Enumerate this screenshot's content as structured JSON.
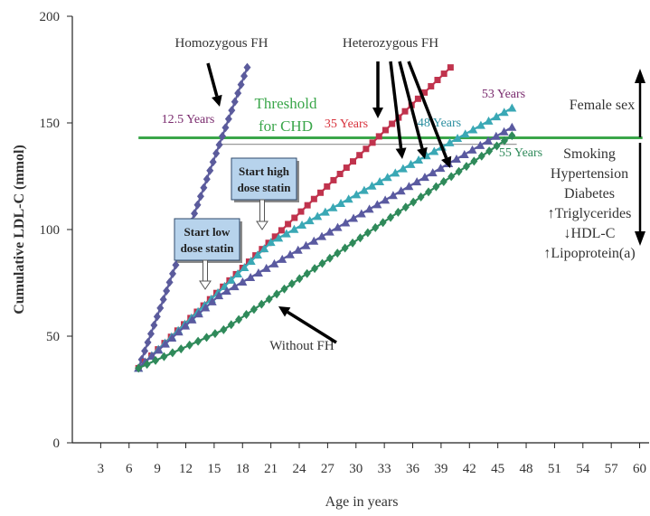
{
  "chart_data": {
    "type": "line",
    "title": "",
    "xlabel": "Age in years",
    "ylabel": "Cumulative LDL-C (mmol)",
    "x_ticks": [
      "3",
      "6",
      "9",
      "12",
      "15",
      "18",
      "21",
      "24",
      "27",
      "30",
      "33",
      "36",
      "39",
      "42",
      "45",
      "48",
      "51",
      "54",
      "57",
      "60"
    ],
    "y_ticks": [
      "0",
      "50",
      "100",
      "150",
      "200"
    ],
    "xlim": [
      0,
      61
    ],
    "ylim": [
      0,
      200
    ],
    "grid": false,
    "series": [
      {
        "name": "Homozygous FH",
        "color": "#5b5b9c",
        "marker": "diamond",
        "x": [
          7,
          18.5
        ],
        "y": [
          35,
          176
        ]
      },
      {
        "name": "Heterozygous FH",
        "color": "#c0334d",
        "marker": "square",
        "x": [
          7,
          40
        ],
        "y": [
          35,
          176
        ]
      },
      {
        "name": "",
        "color": "#3aa8b5",
        "marker": "triangle-up",
        "x": [
          7,
          21,
          46.5
        ],
        "y": [
          35,
          94,
          157
        ]
      },
      {
        "name": "",
        "color": "#5a5aa0",
        "marker": "triangle-up",
        "x": [
          7,
          15.5,
          46.5
        ],
        "y": [
          35,
          69,
          148
        ]
      },
      {
        "name": "Without FH",
        "color": "#2f8a5a",
        "marker": "diamond",
        "x": [
          7,
          16,
          46.5
        ],
        "y": [
          35,
          53,
          144
        ]
      }
    ],
    "threshold": {
      "value": 143,
      "color": "#3aa64a",
      "label_lines": [
        "Threshold",
        "for CHD"
      ]
    },
    "annotations": [
      {
        "text": "Homozygous FH"
      },
      {
        "text": "Heterozygous FH"
      },
      {
        "text": "12.5 Years",
        "color": "#7a2b6e"
      },
      {
        "text": "35 Years",
        "color": "#d8323c"
      },
      {
        "text": "48 Years",
        "color": "#2b8fa0"
      },
      {
        "text": "53 Years",
        "color": "#7a2b6e"
      },
      {
        "text": "55 Years",
        "color": "#2f8a5a"
      },
      {
        "text": "Without FH"
      }
    ],
    "statin_boxes": [
      {
        "lines": [
          "Start low",
          "dose statin"
        ]
      },
      {
        "lines": [
          "Start high",
          "dose statin"
        ]
      }
    ],
    "side_labels": {
      "top": "Female sex",
      "bottom": [
        "Smoking",
        "Hypertension",
        "Diabetes",
        "↑Triglycerides",
        "↓HDL-C",
        "↑Lipoprotein(a)"
      ]
    }
  }
}
